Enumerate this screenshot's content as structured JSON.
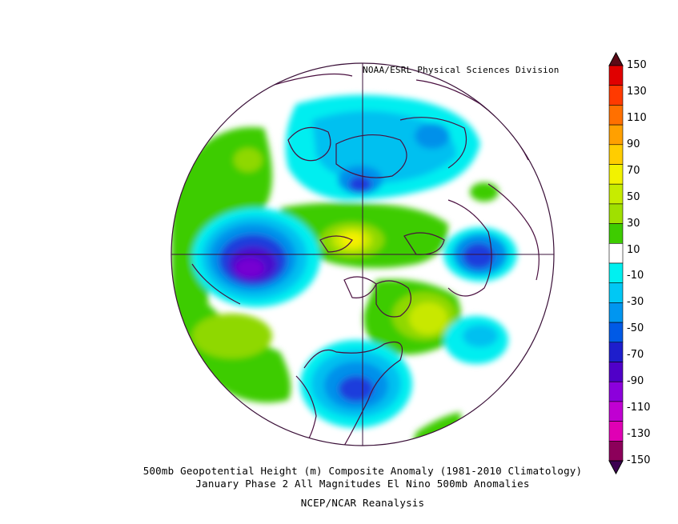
{
  "header": {
    "credit": "NOAA/ESRL Physical Sciences Division"
  },
  "captions": {
    "line1": "500mb Geopotential Height (m) Composite Anomaly (1981-2010 Climatology)",
    "line2": "January Phase 2 All Magnitudes El Nino 500mb Anomalies",
    "line3": "NCEP/NCAR Reanalysis"
  },
  "colorbar": {
    "labels": [
      "150",
      "130",
      "110",
      "90",
      "70",
      "50",
      "30",
      "10",
      "-10",
      "-30",
      "-50",
      "-70",
      "-90",
      "-110",
      "-130",
      "-150"
    ],
    "colors": [
      "#5c0a16",
      "#e00000",
      "#ff3a00",
      "#ff7000",
      "#ffa000",
      "#ffcd00",
      "#f2f200",
      "#c7ec00",
      "#a0e000",
      "#3ecc00",
      "#ffffff",
      "#00f0f0",
      "#00c8f5",
      "#0096f0",
      "#005ae6",
      "#1e1ecc",
      "#5000c8",
      "#8c00dc",
      "#c000d2",
      "#e000b4",
      "#8c005a",
      "#3c0050"
    ]
  },
  "map": {
    "projection": "north-polar-stereographic",
    "field": "500mb geopotential height anomaly",
    "palette": {
      "neg10": "#00eef0",
      "neg30": "#00c0f0",
      "neg50": "#0090ea",
      "neg70": "#1e3cdc",
      "neg90": "#4a10cc",
      "neg110": "#7600d2",
      "pos10": "#3ecc00",
      "pos30": "#8fd800",
      "pos50": "#c8e800",
      "pos70": "#f5f000",
      "coast": "#4a1040",
      "grid": "#3a1038"
    }
  }
}
